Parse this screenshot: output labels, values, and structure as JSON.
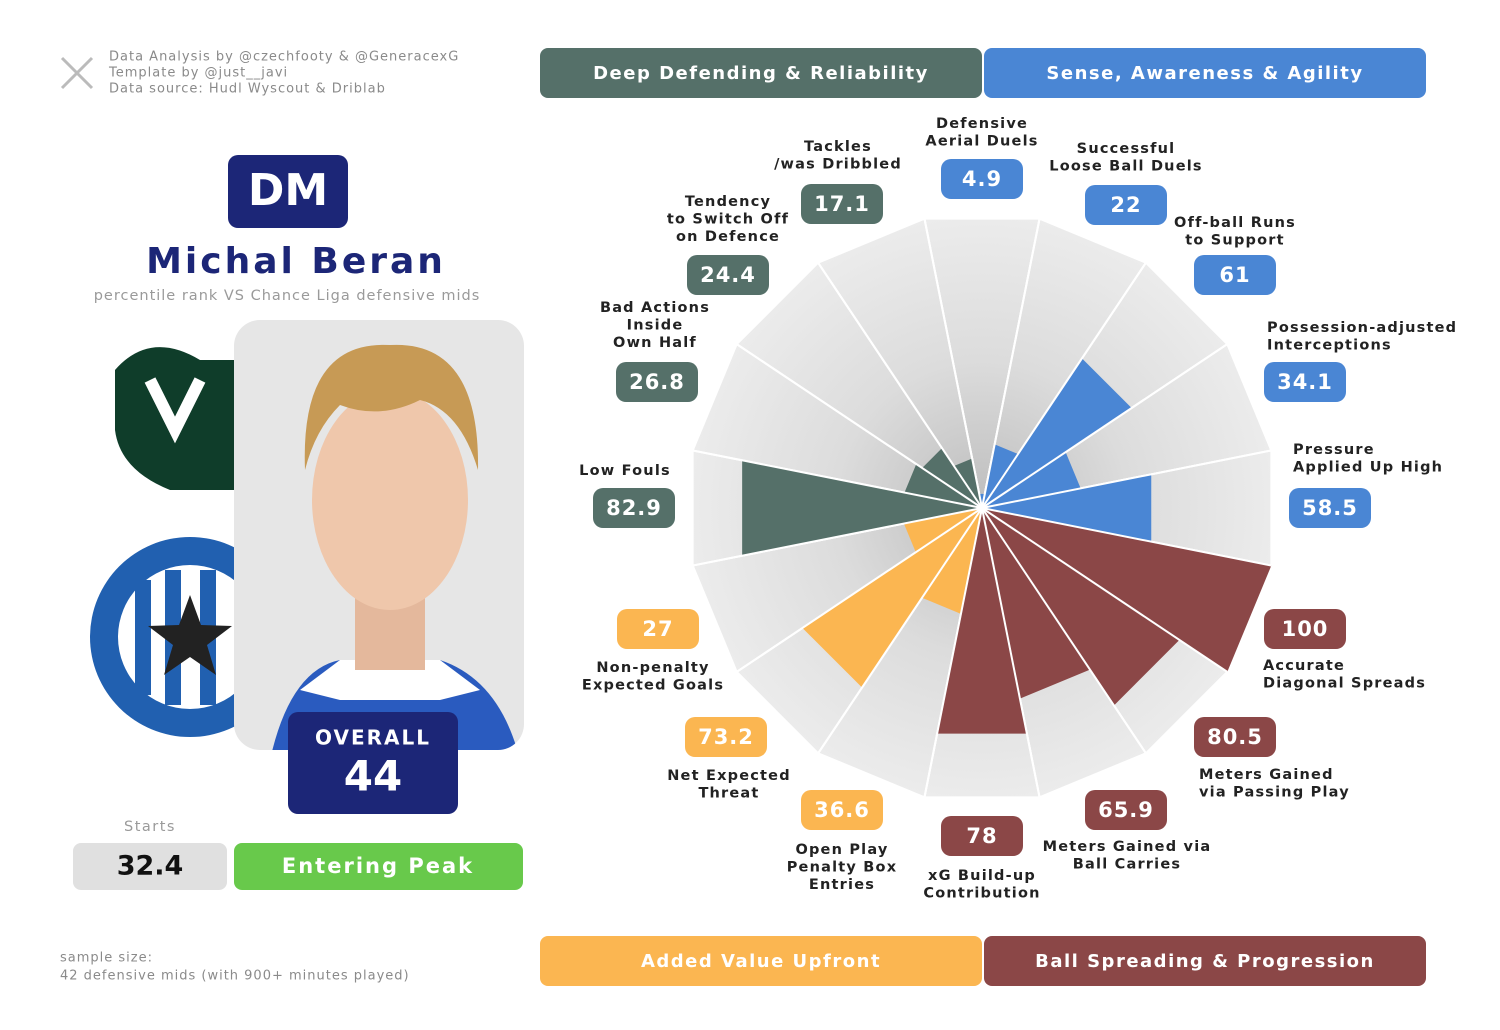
{
  "credits": [
    "Data Analysis by @czechfooty & @GeneracexG",
    "Template by @just__javi",
    "Data source: Hudl Wyscout & Driblab"
  ],
  "player": {
    "position": "DM",
    "name": "Michal Beran",
    "subtitle": "percentile rank VS Chance Liga defensive mids",
    "overall_label": "OVERALL",
    "overall": 44,
    "starts_label": "Starts",
    "starts": 32.4,
    "status": "Entering Peak"
  },
  "sample": [
    "sample size:",
    "42 defensive mids (with 900+ minutes played)"
  ],
  "chart_data": {
    "type": "pizza",
    "groups": [
      {
        "name": "Deep Defending & Reliability",
        "color": "#557069"
      },
      {
        "name": "Sense, Awareness & Agility",
        "color": "#4a86d4"
      },
      {
        "name": "Added Value Upfront",
        "color": "#fbb651"
      },
      {
        "name": "Ball Spreading & Progression",
        "color": "#8b4747"
      }
    ],
    "categories": [
      [
        "Defensive",
        "Aerial Duels"
      ],
      [
        "Successful",
        "Loose Ball Duels"
      ],
      [
        "Off-ball Runs",
        "to Support"
      ],
      [
        "Possession-adjusted",
        "Interceptions"
      ],
      [
        "Pressure",
        "Applied Up High"
      ],
      [
        "Accurate",
        "Diagonal Spreads"
      ],
      [
        "Meters Gained",
        "via Passing Play"
      ],
      [
        "Meters Gained via",
        "Ball Carries"
      ],
      [
        "xG Build-up",
        "Contribution"
      ],
      [
        "Open Play",
        "Penalty Box",
        "Entries"
      ],
      [
        "Net Expected",
        "Threat"
      ],
      [
        "Non-penalty",
        "Expected Goals"
      ],
      [
        "Low Fouls"
      ],
      [
        "Bad Actions",
        "Inside",
        "Own Half"
      ],
      [
        "Tendency",
        "to Switch Off",
        "on Defence"
      ],
      [
        "Tackles",
        "/was Dribbled"
      ]
    ],
    "values": [
      4.9,
      22,
      61,
      34.1,
      58.5,
      100,
      80.5,
      65.9,
      78,
      36.6,
      73.2,
      27,
      82.9,
      26.8,
      24.4,
      17.1
    ],
    "colors": [
      "#4a86d4",
      "#4a86d4",
      "#4a86d4",
      "#4a86d4",
      "#4a86d4",
      "#8b4747",
      "#8b4747",
      "#8b4747",
      "#8b4747",
      "#fbb651",
      "#fbb651",
      "#fbb651",
      "#557069",
      "#557069",
      "#557069",
      "#557069"
    ],
    "ylim": [
      0,
      100
    ]
  }
}
